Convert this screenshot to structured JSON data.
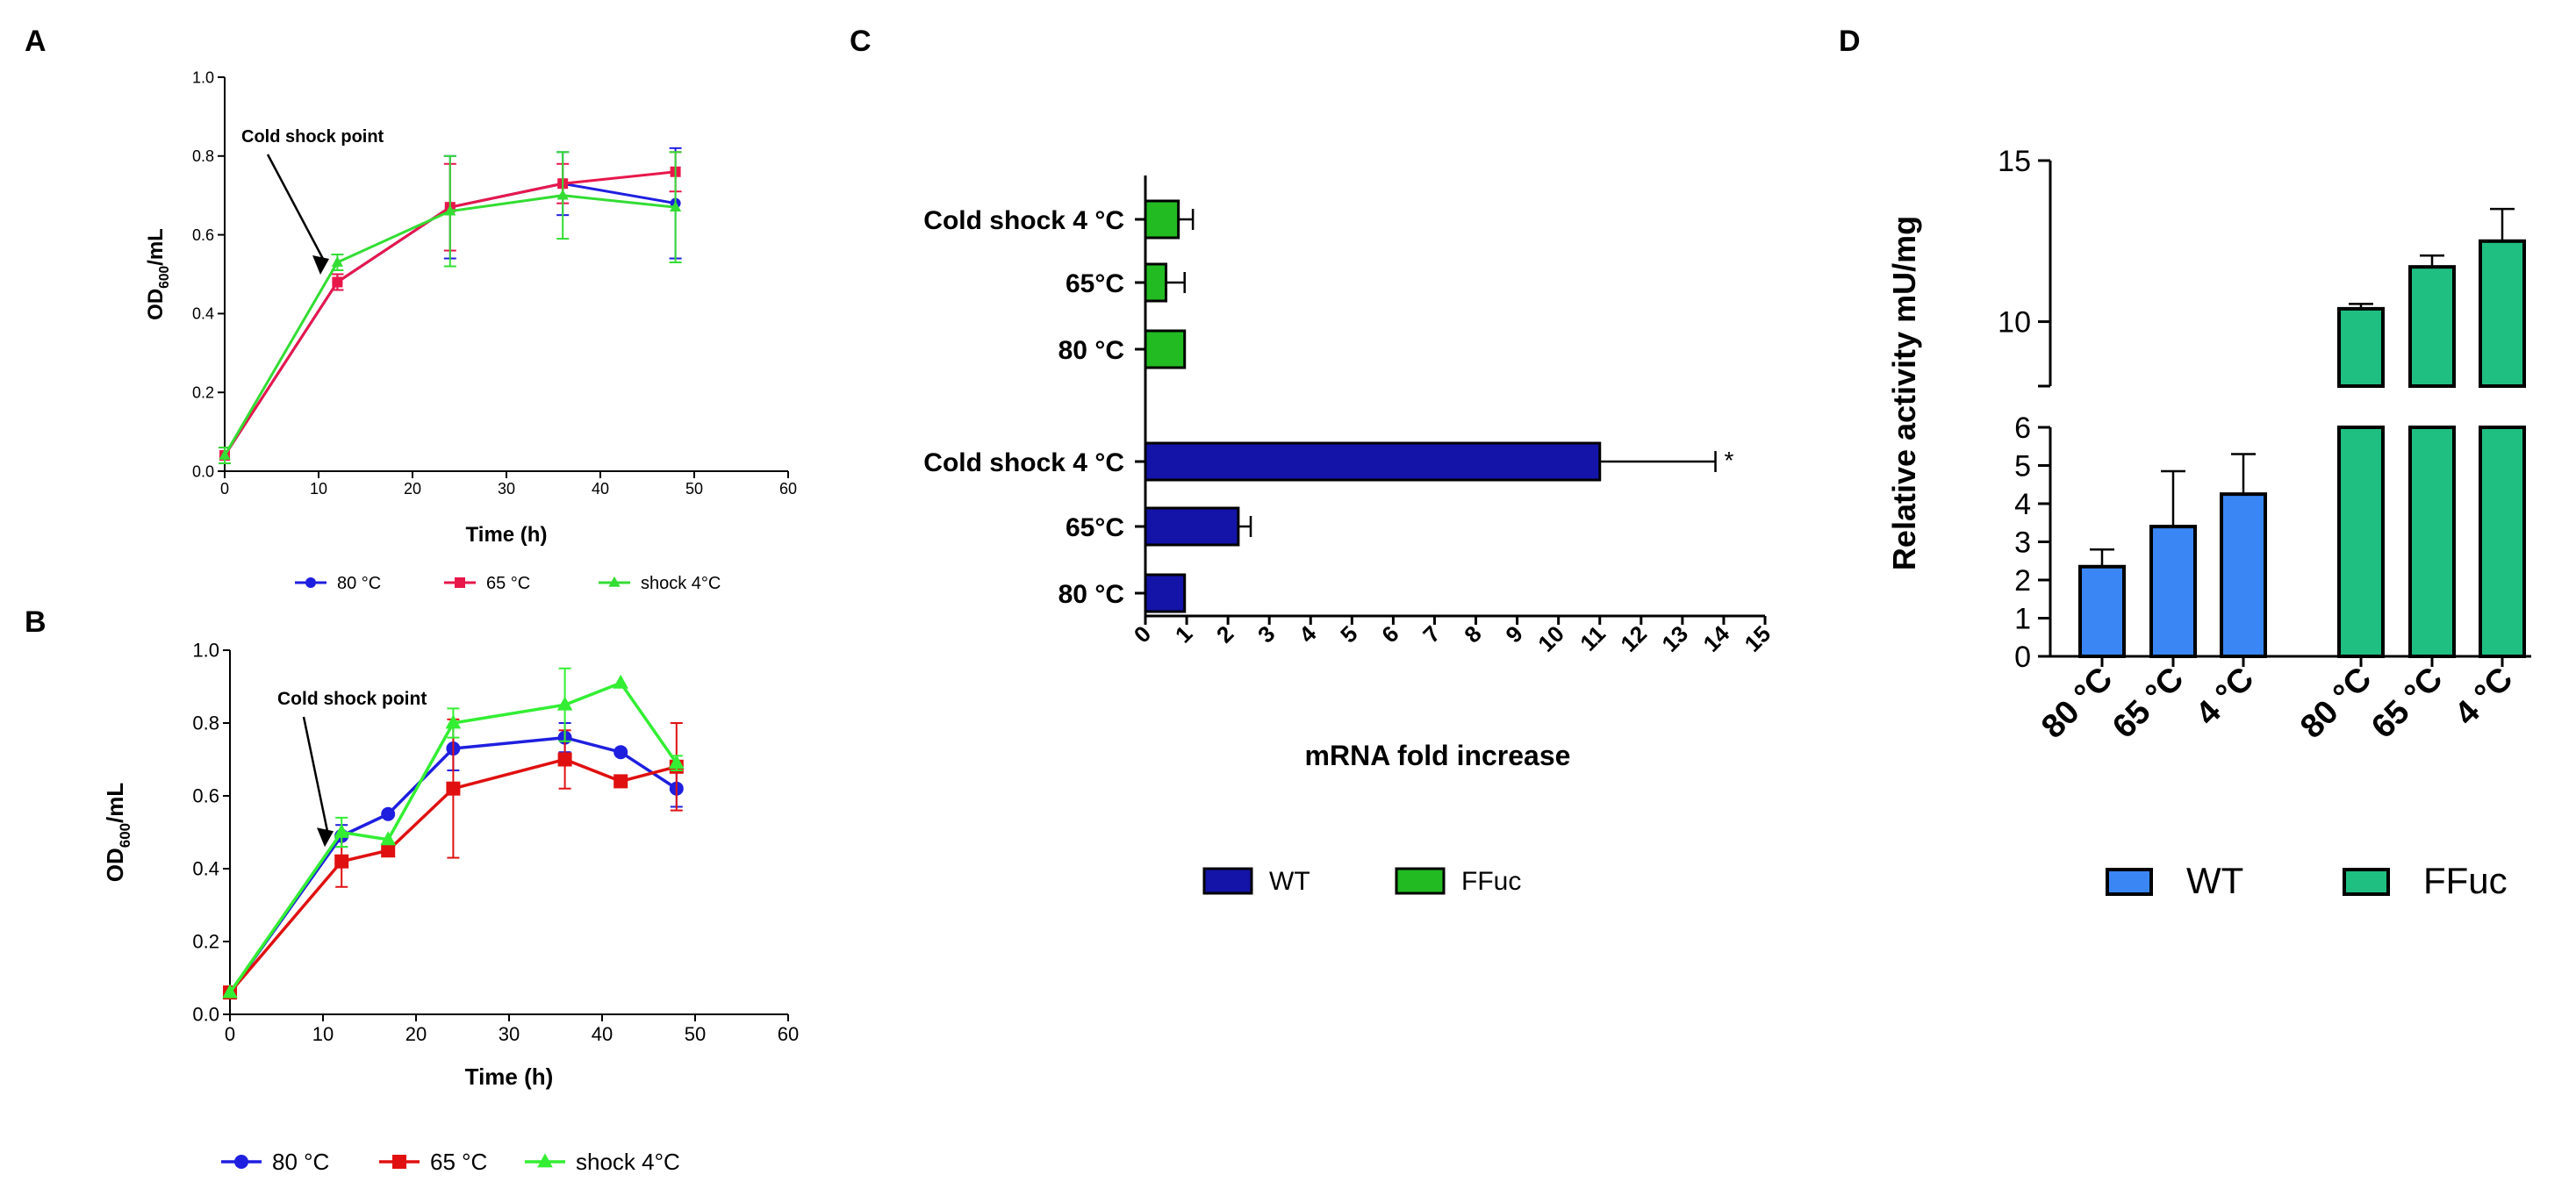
{
  "panels": {
    "A": {
      "label": "A"
    },
    "B": {
      "label": "B"
    },
    "C": {
      "label": "C"
    },
    "D": {
      "label": "D"
    }
  },
  "chart_data": [
    {
      "id": "A",
      "type": "line",
      "title": "",
      "xlabel": "Time (h)",
      "ylabel_main": "OD",
      "ylabel_sub": "600",
      "ylabel_tail": "/mL",
      "xlim": [
        0,
        60
      ],
      "ylim": [
        0,
        1.0
      ],
      "xticks": [
        "0",
        "10",
        "20",
        "30",
        "40",
        "50",
        "60"
      ],
      "yticks": [
        "0.0",
        "0.2",
        "0.4",
        "0.6",
        "0.8",
        "1.0"
      ],
      "annotation": {
        "text": "Cold shock point",
        "x": 10,
        "y": 0.49
      },
      "series": [
        {
          "name": "80 °C",
          "color": "#1f1fe0",
          "marker": "circle",
          "x": [
            0,
            12,
            24,
            36,
            48
          ],
          "y": [
            0.04,
            0.48,
            0.67,
            0.73,
            0.68
          ],
          "err": [
            0.02,
            0.02,
            0.13,
            0.08,
            0.14
          ]
        },
        {
          "name": "65 °C",
          "color": "#e8174a",
          "marker": "square",
          "x": [
            0,
            12,
            24,
            36,
            48
          ],
          "y": [
            0.04,
            0.48,
            0.67,
            0.73,
            0.76
          ],
          "err": [
            0.02,
            0.02,
            0.11,
            0.05,
            0.05
          ]
        },
        {
          "name": "shock 4°C",
          "color": "#33dd33",
          "marker": "triangle",
          "x": [
            0,
            12,
            24,
            36,
            48
          ],
          "y": [
            0.04,
            0.53,
            0.66,
            0.7,
            0.67
          ],
          "err": [
            0.02,
            0.02,
            0.14,
            0.11,
            0.14
          ]
        }
      ]
    },
    {
      "id": "B",
      "type": "line",
      "title": "",
      "xlabel": "Time (h)",
      "ylabel_main": "OD",
      "ylabel_sub": "600",
      "ylabel_tail": "/mL",
      "xlim": [
        0,
        60
      ],
      "ylim": [
        0,
        1.0
      ],
      "xticks": [
        "0",
        "10",
        "20",
        "30",
        "40",
        "50",
        "60"
      ],
      "yticks": [
        "0.0",
        "0.2",
        "0.4",
        "0.6",
        "0.8",
        "1.0"
      ],
      "annotation": {
        "text": "Cold shock point",
        "x": 10,
        "y": 0.45
      },
      "series": [
        {
          "name": "80 °C",
          "color": "#1f1fe0",
          "marker": "circle",
          "x": [
            0,
            12,
            17,
            24,
            36,
            42,
            48
          ],
          "y": [
            0.06,
            0.49,
            0.55,
            0.73,
            0.76,
            0.72,
            0.62
          ],
          "err": [
            0,
            0.03,
            0,
            0.06,
            0.04,
            0,
            0.05
          ]
        },
        {
          "name": "65 °C",
          "color": "#e01010",
          "marker": "square",
          "x": [
            0,
            12,
            17,
            24,
            36,
            42,
            48
          ],
          "y": [
            0.06,
            0.42,
            0.45,
            0.62,
            0.7,
            0.64,
            0.68
          ],
          "err": [
            0,
            0.07,
            0,
            0.19,
            0.08,
            0,
            0.12
          ]
        },
        {
          "name": "shock 4°C",
          "color": "#33ee33",
          "marker": "triangle",
          "x": [
            0,
            12,
            17,
            24,
            36,
            42,
            48
          ],
          "y": [
            0.06,
            0.5,
            0.48,
            0.8,
            0.85,
            0.91,
            0.69
          ],
          "err": [
            0,
            0.04,
            0,
            0.04,
            0.1,
            0,
            0.02
          ]
        }
      ]
    },
    {
      "id": "C",
      "type": "bar",
      "orientation": "horizontal",
      "xlabel": "mRNA fold increase",
      "xlim": [
        0,
        15
      ],
      "xticks": [
        "0",
        "1",
        "2",
        "3",
        "4",
        "5",
        "6",
        "7",
        "8",
        "9",
        "10",
        "11",
        "12",
        "13",
        "14",
        "15"
      ],
      "categories": [
        "Cold shock 4 °C",
        "65°C",
        "80 °C",
        "Cold shock 4 °C",
        "65°C",
        "80 °C"
      ],
      "groups": [
        "FFuc",
        "FFuc",
        "FFuc",
        "WT",
        "WT",
        "WT"
      ],
      "values": [
        0.8,
        0.5,
        0.95,
        11.0,
        2.25,
        0.95
      ],
      "err": [
        0.35,
        0.45,
        0,
        2.8,
        0.3,
        0
      ],
      "sig": [
        "",
        "",
        "",
        "*",
        "",
        ""
      ],
      "legend": [
        {
          "name": "WT",
          "color": "#1414a8"
        },
        {
          "name": "FFuc",
          "color": "#22bb22"
        }
      ]
    },
    {
      "id": "D",
      "type": "bar",
      "ylabel": "Relative activity mU/mg",
      "axis_break": [
        6,
        8
      ],
      "ylim": [
        0,
        15
      ],
      "yticks_low": [
        "0",
        "1",
        "2",
        "3",
        "4",
        "5",
        "6"
      ],
      "yticks_high": [
        "10",
        "15"
      ],
      "categories": [
        "80 °C",
        "65 °C",
        "4 °C",
        "80 °C",
        "65 °C",
        "4 °C"
      ],
      "groups": [
        "WT",
        "WT",
        "WT",
        "FFuc",
        "FFuc",
        "FFuc"
      ],
      "values": [
        2.35,
        3.4,
        4.25,
        10.4,
        11.7,
        12.5
      ],
      "err": [
        0.45,
        1.45,
        1.05,
        0.15,
        0.35,
        1.0
      ],
      "legend": [
        {
          "name": "WT",
          "color": "#3a86f5"
        },
        {
          "name": "FFuc",
          "color": "#1fbf82"
        }
      ]
    }
  ]
}
